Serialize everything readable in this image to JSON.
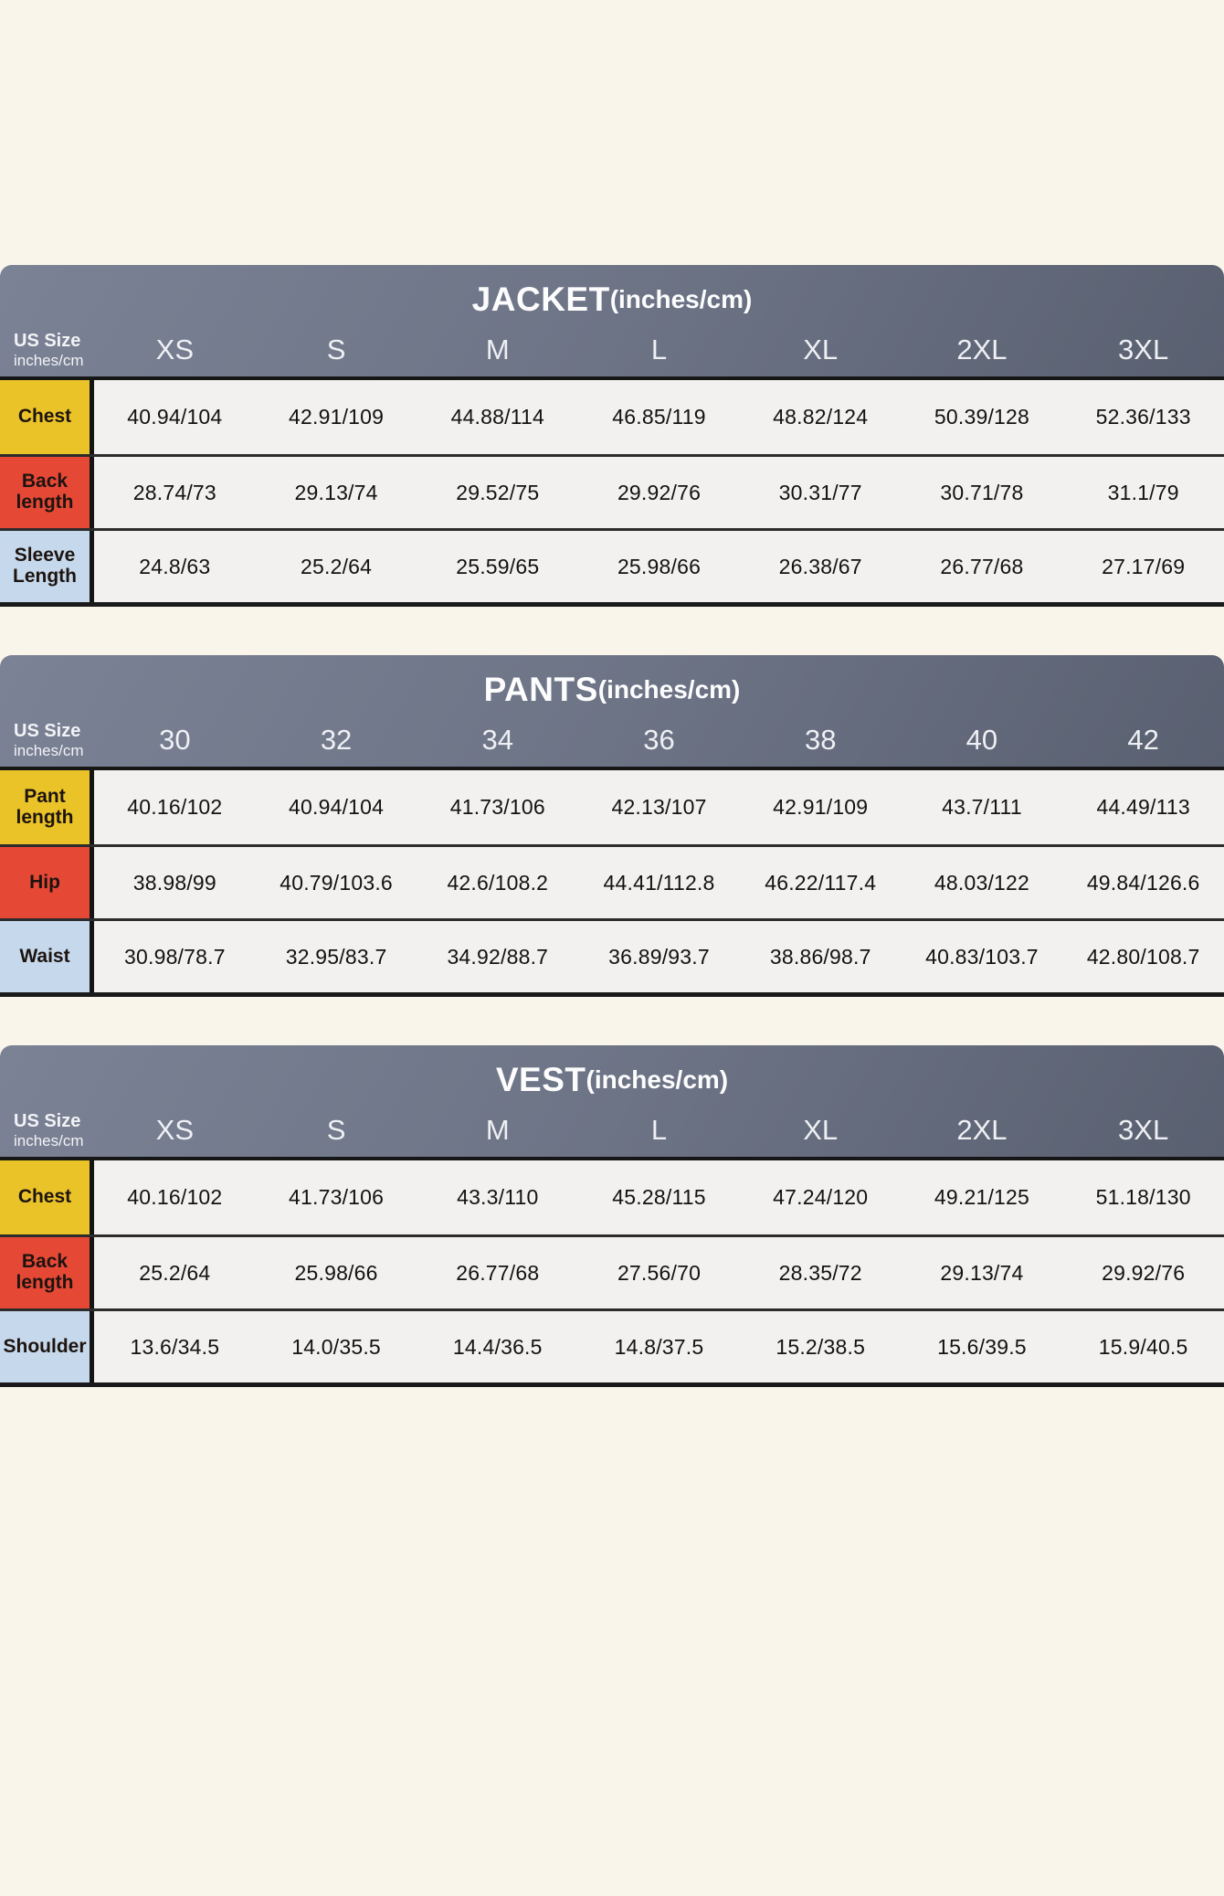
{
  "page": {
    "background": "#faf5ea"
  },
  "colors": {
    "header_gray_start": "#7b8295",
    "header_gray_end": "#596070",
    "header_text": "#fdfdfe",
    "data_cell_bg": "#f2f1ef",
    "data_text": "#121212",
    "border_dark": "#1a1a1a",
    "row_label": {
      "yellow": "#eac328",
      "red": "#e64836",
      "blue": "#c6d8eb"
    }
  },
  "tables": [
    {
      "id": "jacket",
      "title": "JACKET",
      "title_suffix": "(inches/cm)",
      "corner_line1": "US Size",
      "corner_line2": "inches/cm",
      "sizes": [
        "XS",
        "S",
        "M",
        "L",
        "XL",
        "2XL",
        "3XL"
      ],
      "rows": [
        {
          "label": "Chest",
          "color": "yellow",
          "values": [
            "40.94/104",
            "42.91/109",
            "44.88/114",
            "46.85/119",
            "48.82/124",
            "50.39/128",
            "52.36/133"
          ]
        },
        {
          "label": "Back length",
          "color": "red",
          "values": [
            "28.74/73",
            "29.13/74",
            "29.52/75",
            "29.92/76",
            "30.31/77",
            "30.71/78",
            "31.1/79"
          ]
        },
        {
          "label": "Sleeve Length",
          "color": "blue",
          "values": [
            "24.8/63",
            "25.2/64",
            "25.59/65",
            "25.98/66",
            "26.38/67",
            "26.77/68",
            "27.17/69"
          ]
        }
      ]
    },
    {
      "id": "pants",
      "title": "PANTS",
      "title_suffix": "(inches/cm)",
      "corner_line1": "US Size",
      "corner_line2": "inches/cm",
      "sizes": [
        "30",
        "32",
        "34",
        "36",
        "38",
        "40",
        "42"
      ],
      "rows": [
        {
          "label": "Pant length",
          "color": "yellow",
          "values": [
            "40.16/102",
            "40.94/104",
            "41.73/106",
            "42.13/107",
            "42.91/109",
            "43.7/111",
            "44.49/113"
          ]
        },
        {
          "label": "Hip",
          "color": "red",
          "values": [
            "38.98/99",
            "40.79/103.6",
            "42.6/108.2",
            "44.41/112.8",
            "46.22/117.4",
            "48.03/122",
            "49.84/126.6"
          ]
        },
        {
          "label": "Waist",
          "color": "blue",
          "values": [
            "30.98/78.7",
            "32.95/83.7",
            "34.92/88.7",
            "36.89/93.7",
            "38.86/98.7",
            "40.83/103.7",
            "42.80/108.7"
          ]
        }
      ]
    },
    {
      "id": "vest",
      "title": "VEST",
      "title_suffix": "(inches/cm)",
      "corner_line1": "US Size",
      "corner_line2": "inches/cm",
      "sizes": [
        "XS",
        "S",
        "M",
        "L",
        "XL",
        "2XL",
        "3XL"
      ],
      "rows": [
        {
          "label": "Chest",
          "color": "yellow",
          "values": [
            "40.16/102",
            "41.73/106",
            "43.3/110",
            "45.28/115",
            "47.24/120",
            "49.21/125",
            "51.18/130"
          ]
        },
        {
          "label": "Back length",
          "color": "red",
          "values": [
            "25.2/64",
            "25.98/66",
            "26.77/68",
            "27.56/70",
            "28.35/72",
            "29.13/74",
            "29.92/76"
          ]
        },
        {
          "label": "Shoulder",
          "color": "blue",
          "values": [
            "13.6/34.5",
            "14.0/35.5",
            "14.4/36.5",
            "14.8/37.5",
            "15.2/38.5",
            "15.6/39.5",
            "15.9/40.5"
          ]
        }
      ]
    }
  ],
  "chart_data": [
    {
      "type": "table",
      "title": "JACKET(inches/cm)",
      "columns": [
        "US Size inches/cm",
        "XS",
        "S",
        "M",
        "L",
        "XL",
        "2XL",
        "3XL"
      ],
      "rows": [
        [
          "Chest",
          "40.94/104",
          "42.91/109",
          "44.88/114",
          "46.85/119",
          "48.82/124",
          "50.39/128",
          "52.36/133"
        ],
        [
          "Back length",
          "28.74/73",
          "29.13/74",
          "29.52/75",
          "29.92/76",
          "30.31/77",
          "30.71/78",
          "31.1/79"
        ],
        [
          "Sleeve Length",
          "24.8/63",
          "25.2/64",
          "25.59/65",
          "25.98/66",
          "26.38/67",
          "26.77/68",
          "27.17/69"
        ]
      ]
    },
    {
      "type": "table",
      "title": "PANTS(inches/cm)",
      "columns": [
        "US Size inches/cm",
        "30",
        "32",
        "34",
        "36",
        "38",
        "40",
        "42"
      ],
      "rows": [
        [
          "Pant length",
          "40.16/102",
          "40.94/104",
          "41.73/106",
          "42.13/107",
          "42.91/109",
          "43.7/111",
          "44.49/113"
        ],
        [
          "Hip",
          "38.98/99",
          "40.79/103.6",
          "42.6/108.2",
          "44.41/112.8",
          "46.22/117.4",
          "48.03/122",
          "49.84/126.6"
        ],
        [
          "Waist",
          "30.98/78.7",
          "32.95/83.7",
          "34.92/88.7",
          "36.89/93.7",
          "38.86/98.7",
          "40.83/103.7",
          "42.80/108.7"
        ]
      ]
    },
    {
      "type": "table",
      "title": "VEST(inches/cm)",
      "columns": [
        "US Size inches/cm",
        "XS",
        "S",
        "M",
        "L",
        "XL",
        "2XL",
        "3XL"
      ],
      "rows": [
        [
          "Chest",
          "40.16/102",
          "41.73/106",
          "43.3/110",
          "45.28/115",
          "47.24/120",
          "49.21/125",
          "51.18/130"
        ],
        [
          "Back length",
          "25.2/64",
          "25.98/66",
          "26.77/68",
          "27.56/70",
          "28.35/72",
          "29.13/74",
          "29.92/76"
        ],
        [
          "Shoulder",
          "13.6/34.5",
          "14.0/35.5",
          "14.4/36.5",
          "14.8/37.5",
          "15.2/38.5",
          "15.6/39.5",
          "15.9/40.5"
        ]
      ]
    }
  ]
}
